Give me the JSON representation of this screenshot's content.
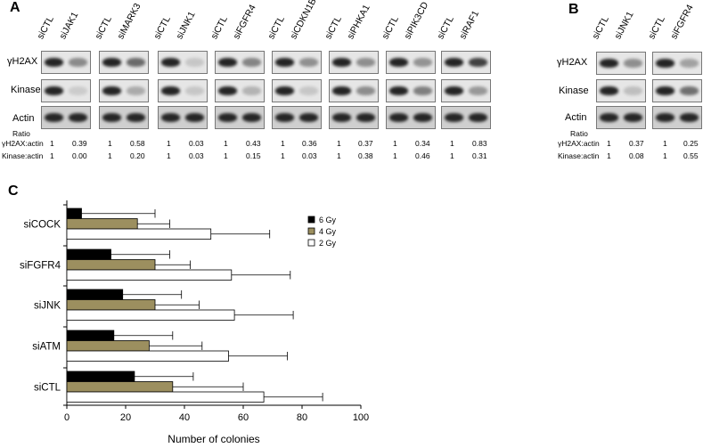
{
  "panelA": {
    "letter": "A",
    "row_labels": [
      "γH2AX",
      "Kinase",
      "Actin"
    ],
    "ratio_header": "Ratio",
    "ratio_rows": [
      "γH2AX:actin",
      "Kinase:actin"
    ],
    "groups": [
      {
        "lanes": [
          "siCTL",
          "siJAK1"
        ],
        "gamma": [
          "1",
          "0.39"
        ],
        "kinase": [
          "1",
          "0.00"
        ]
      },
      {
        "lanes": [
          "siCTL",
          "siMARK3"
        ],
        "gamma": [
          "1",
          "0.58"
        ],
        "kinase": [
          "1",
          "0.20"
        ]
      },
      {
        "lanes": [
          "siCTL",
          "siJNK1"
        ],
        "gamma": [
          "1",
          "0.03"
        ],
        "kinase": [
          "1",
          "0.03"
        ]
      },
      {
        "lanes": [
          "siCTL",
          "siFGFR4"
        ],
        "gamma": [
          "1",
          "0.43"
        ],
        "kinase": [
          "1",
          "0.15"
        ]
      },
      {
        "lanes": [
          "siCTL",
          "siCDKN1B"
        ],
        "gamma": [
          "1",
          "0.36"
        ],
        "kinase": [
          "1",
          "0.03"
        ]
      },
      {
        "lanes": [
          "siCTL",
          "siPHKA1"
        ],
        "gamma": [
          "1",
          "0.37"
        ],
        "kinase": [
          "1",
          "0.38"
        ]
      },
      {
        "lanes": [
          "siCTL",
          "siPIK3CD"
        ],
        "gamma": [
          "1",
          "0.34"
        ],
        "kinase": [
          "1",
          "0.46"
        ]
      },
      {
        "lanes": [
          "siCTL",
          "siRAF1"
        ],
        "gamma": [
          "1",
          "0.83"
        ],
        "kinase": [
          "1",
          "0.31"
        ]
      }
    ]
  },
  "panelB": {
    "letter": "B",
    "row_labels": [
      "γH2AX",
      "Kinase",
      "Actin"
    ],
    "ratio_header": "Ratio",
    "ratio_rows": [
      "γH2AX:actin",
      "Kinase:actin"
    ],
    "groups": [
      {
        "lanes": [
          "siCTL",
          "siJNK1"
        ],
        "gamma": [
          "1",
          "0.37"
        ],
        "kinase": [
          "1",
          "0.08"
        ]
      },
      {
        "lanes": [
          "siCTL",
          "siFGFR4"
        ],
        "gamma": [
          "1",
          "0.25"
        ],
        "kinase": [
          "1",
          "0.55"
        ]
      }
    ]
  },
  "panelC": {
    "letter": "C"
  },
  "chart_data": {
    "type": "bar",
    "orientation": "horizontal",
    "categories": [
      "siCOCK",
      "siFGFR4",
      "siJNK",
      "siATM",
      "siCTL"
    ],
    "series": [
      {
        "name": "6 Gy",
        "color": "#000000",
        "values": [
          5,
          15,
          19,
          16,
          23
        ],
        "errors": [
          25,
          20,
          20,
          20,
          20
        ]
      },
      {
        "name": "4 Gy",
        "color": "#9c8f5f",
        "values": [
          24,
          30,
          30,
          28,
          36
        ],
        "errors": [
          11,
          12,
          15,
          18,
          24
        ]
      },
      {
        "name": "2 Gy",
        "color": "#ffffff",
        "values": [
          49,
          56,
          57,
          55,
          67
        ],
        "errors": [
          20,
          20,
          20,
          20,
          20
        ]
      }
    ],
    "xlabel": "Number of colonies",
    "ylabel": "",
    "xlim": [
      0,
      100
    ],
    "xticks": [
      "0",
      "20",
      "40",
      "60",
      "80",
      "100"
    ],
    "legend_position": "top-right",
    "grid": false
  }
}
